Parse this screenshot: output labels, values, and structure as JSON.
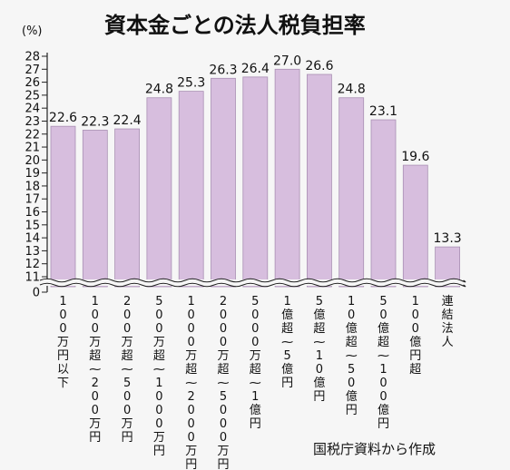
{
  "chart_data": {
    "type": "bar",
    "title": "資本金ごとの法人税負担率",
    "unit_label": "(%)",
    "source": "国税庁資料から作成",
    "y_ticks": [
      0,
      11,
      12,
      13,
      14,
      15,
      16,
      17,
      18,
      19,
      20,
      21,
      22,
      23,
      24,
      25,
      26,
      27,
      28
    ],
    "ylim": [
      11,
      28
    ],
    "axis_break": true,
    "bar_color": "#d7bede",
    "bar_edge_color": "#a98fb3",
    "categories": [
      "100万円以下",
      "100万超〜200万円",
      "200万超〜500万円",
      "500万超〜1000万円",
      "1000万超〜2000万円",
      "2000万超〜5000万円",
      "5000万超〜1億円",
      "1億超〜5億円",
      "5億超〜10億円",
      "10億超〜50億円",
      "50億超〜100億円",
      "100億円超",
      "連結法人"
    ],
    "values": [
      22.6,
      22.3,
      22.4,
      24.8,
      25.3,
      26.3,
      26.4,
      27.0,
      26.6,
      24.8,
      23.1,
      19.6,
      13.3
    ],
    "value_labels": [
      "22.6",
      "22.3",
      "22.4",
      "24.8",
      "25.3",
      "26.3",
      "26.4",
      "27.0",
      "26.6",
      "24.8",
      "23.1",
      "19.6",
      "13.3"
    ]
  }
}
